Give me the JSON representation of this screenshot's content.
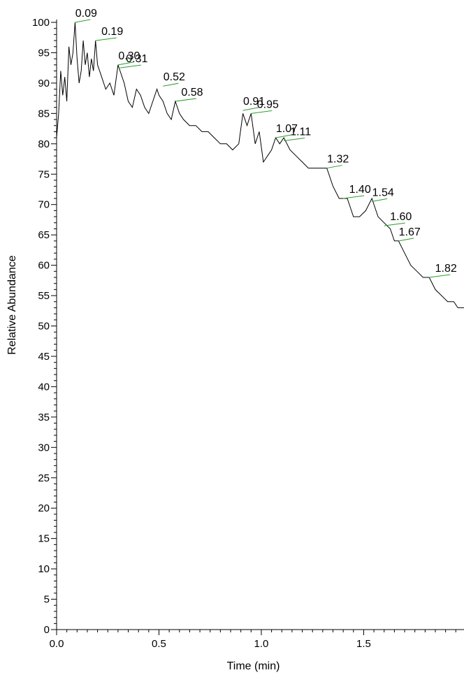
{
  "chart_data": {
    "type": "line",
    "xlabel": "Time (min)",
    "ylabel": "Relative Abundance",
    "xlim": [
      0.0,
      1.99
    ],
    "ylim": [
      0,
      100
    ],
    "x_major_ticks": [
      {
        "value": 0.0,
        "label": "0.0"
      },
      {
        "value": 0.5,
        "label": "0.5"
      },
      {
        "value": 1.0,
        "label": "1.0"
      },
      {
        "value": 1.5,
        "label": "1.5"
      }
    ],
    "y_major_ticks": [
      {
        "value": 0,
        "label": "0"
      },
      {
        "value": 5,
        "label": "5"
      },
      {
        "value": 10,
        "label": "10"
      },
      {
        "value": 15,
        "label": "15"
      },
      {
        "value": 20,
        "label": "20"
      },
      {
        "value": 25,
        "label": "25"
      },
      {
        "value": 30,
        "label": "30"
      },
      {
        "value": 35,
        "label": "35"
      },
      {
        "value": 40,
        "label": "40"
      },
      {
        "value": 45,
        "label": "45"
      },
      {
        "value": 50,
        "label": "50"
      },
      {
        "value": 55,
        "label": "55"
      },
      {
        "value": 60,
        "label": "60"
      },
      {
        "value": 65,
        "label": "65"
      },
      {
        "value": 70,
        "label": "70"
      },
      {
        "value": 75,
        "label": "75"
      },
      {
        "value": 80,
        "label": "80"
      },
      {
        "value": 85,
        "label": "85"
      },
      {
        "value": 90,
        "label": "90"
      },
      {
        "value": 95,
        "label": "95"
      },
      {
        "value": 100,
        "label": "100"
      }
    ],
    "line_color": "#000000",
    "peak_leader_color": "#2a9d2a",
    "series": [
      {
        "x": [
          0.0,
          0.01,
          0.02,
          0.03,
          0.04,
          0.05,
          0.06,
          0.07,
          0.08,
          0.09,
          0.1,
          0.11,
          0.12,
          0.13,
          0.14,
          0.15,
          0.16,
          0.17,
          0.18,
          0.19,
          0.2,
          0.22,
          0.24,
          0.26,
          0.28,
          0.3,
          0.31,
          0.33,
          0.35,
          0.37,
          0.39,
          0.41,
          0.43,
          0.45,
          0.47,
          0.49,
          0.5,
          0.52,
          0.54,
          0.56,
          0.58,
          0.6,
          0.62,
          0.65,
          0.68,
          0.71,
          0.74,
          0.77,
          0.8,
          0.83,
          0.86,
          0.89,
          0.91,
          0.93,
          0.95,
          0.97,
          0.99,
          1.01,
          1.03,
          1.05,
          1.07,
          1.09,
          1.11,
          1.14,
          1.17,
          1.2,
          1.23,
          1.26,
          1.29,
          1.32,
          1.35,
          1.38,
          1.4,
          1.42,
          1.45,
          1.48,
          1.51,
          1.54,
          1.57,
          1.6,
          1.63,
          1.65,
          1.67,
          1.7,
          1.73,
          1.76,
          1.79,
          1.82,
          1.85,
          1.88,
          1.91,
          1.94,
          1.96,
          1.99
        ],
        "y": [
          81,
          85,
          92,
          88,
          91,
          87,
          96,
          93,
          95,
          100,
          94,
          90,
          92,
          97,
          93,
          95,
          91,
          94,
          92,
          97,
          93,
          91,
          89,
          90,
          88,
          93,
          92,
          90,
          87,
          86,
          89,
          88,
          86,
          85,
          87,
          89,
          88,
          87,
          85,
          84,
          87,
          85,
          84,
          83,
          83,
          82,
          82,
          81,
          80,
          80,
          79,
          80,
          85,
          83,
          85,
          80,
          82,
          77,
          78,
          79,
          81,
          80,
          81,
          79,
          78,
          77,
          76,
          76,
          76,
          76,
          73,
          71,
          71,
          71,
          68,
          68,
          69,
          71,
          68,
          67,
          66,
          64,
          64,
          62,
          60,
          59,
          58,
          58,
          56,
          55,
          54,
          54,
          53,
          53
        ]
      }
    ],
    "peak_labels": [
      {
        "label": "0.09",
        "x": 0.09,
        "y": 100
      },
      {
        "label": "0.19",
        "x": 0.19,
        "y": 97
      },
      {
        "label": "0.30",
        "x": 0.3,
        "y": 93
      },
      {
        "label": "0.31",
        "x": 0.31,
        "y": 92.5
      },
      {
        "label": "0.52",
        "x": 0.52,
        "y": 89.5
      },
      {
        "label": "0.58",
        "x": 0.58,
        "y": 87
      },
      {
        "label": "0.91",
        "x": 0.91,
        "y": 85.5
      },
      {
        "label": "0.95",
        "x": 0.95,
        "y": 85
      },
      {
        "label": "1.07",
        "x": 1.07,
        "y": 81
      },
      {
        "label": "1.11",
        "x": 1.11,
        "y": 80.5
      },
      {
        "label": "1.32",
        "x": 1.32,
        "y": 76
      },
      {
        "label": "1.40",
        "x": 1.4,
        "y": 71
      },
      {
        "label": "1.54",
        "x": 1.54,
        "y": 70.5
      },
      {
        "label": "1.60",
        "x": 1.6,
        "y": 66.5
      },
      {
        "label": "1.67",
        "x": 1.67,
        "y": 64
      },
      {
        "label": "1.82",
        "x": 1.82,
        "y": 58
      }
    ]
  }
}
